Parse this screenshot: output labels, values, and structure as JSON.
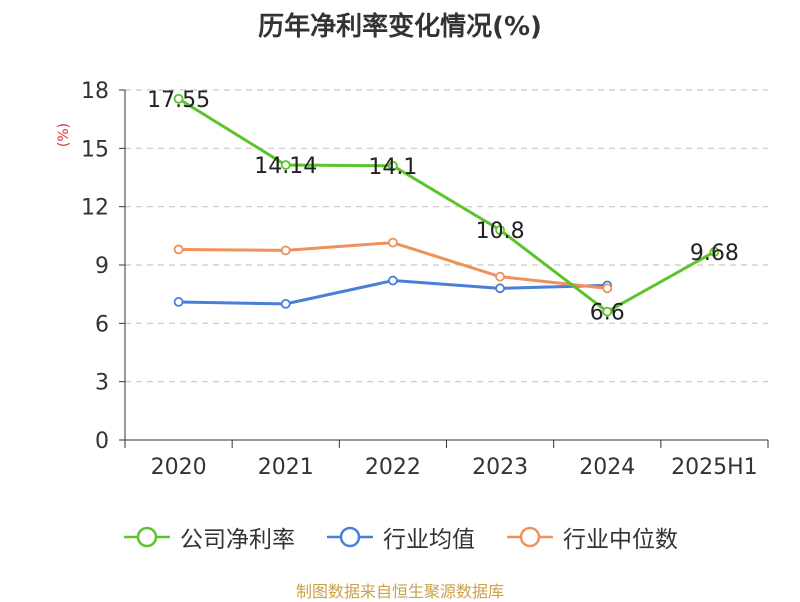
{
  "chart_data": {
    "type": "line",
    "title": "历年净利率变化情况(%)",
    "ylabel": "(%)",
    "categories": [
      "2020",
      "2021",
      "2022",
      "2023",
      "2024",
      "2025H1"
    ],
    "ylim": [
      0,
      18
    ],
    "yticks": [
      0,
      3,
      6,
      9,
      12,
      15,
      18
    ],
    "grid": true,
    "legend_position": "bottom",
    "series": [
      {
        "name": "公司净利率",
        "color": "#5cc42b",
        "values": [
          17.55,
          14.14,
          14.1,
          10.8,
          6.6,
          9.68
        ],
        "labels": [
          "17.55",
          "14.14",
          "14.1",
          "10.8",
          "6.6",
          "9.68"
        ]
      },
      {
        "name": "行业均值",
        "color": "#4a7fd8",
        "values": [
          7.1,
          7.0,
          8.2,
          7.8,
          7.95,
          null
        ]
      },
      {
        "name": "行业中位数",
        "color": "#f0905a",
        "values": [
          9.8,
          9.75,
          10.15,
          8.4,
          7.8,
          null
        ]
      }
    ]
  },
  "source": "制图数据来自恒生聚源数据库"
}
